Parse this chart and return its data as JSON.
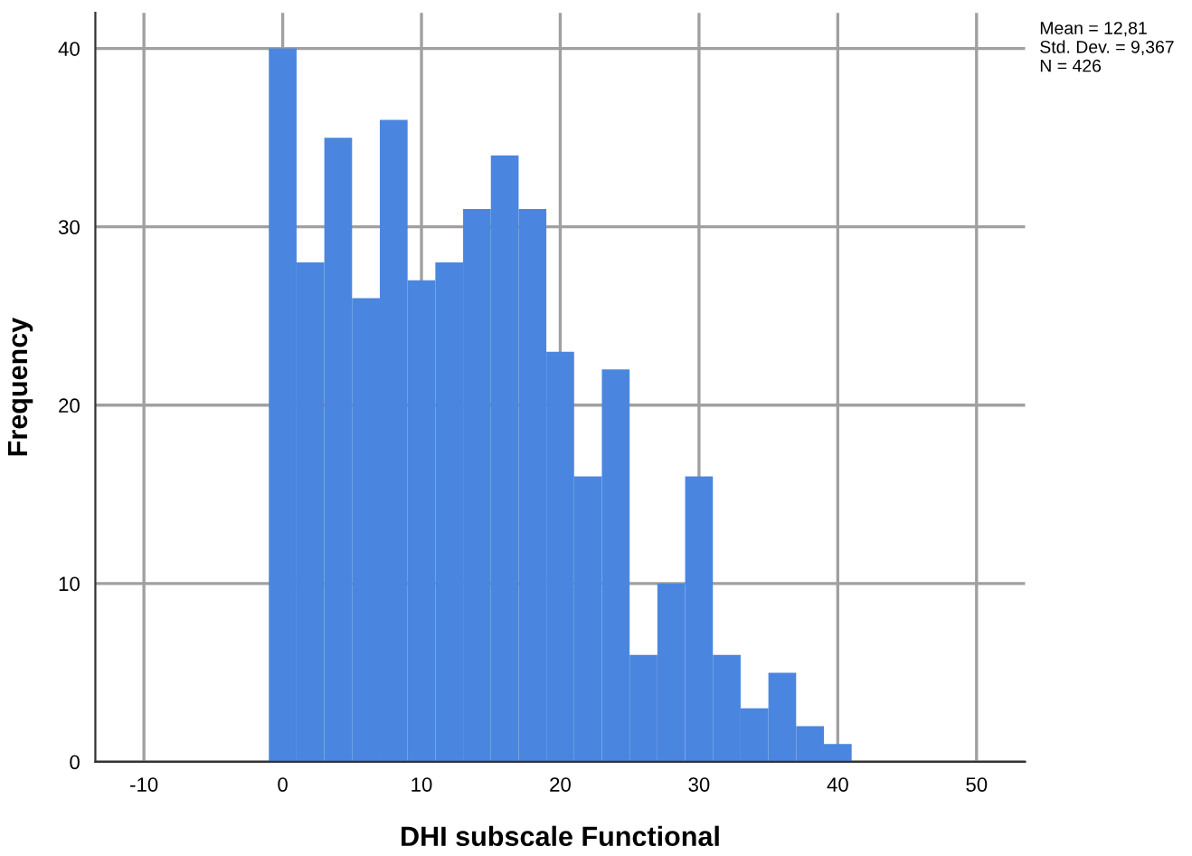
{
  "chart_data": {
    "type": "histogram",
    "xlabel": "DHI subscale Functional",
    "ylabel": "Frequency",
    "bins": [
      -1,
      1,
      3,
      5,
      7,
      9,
      11,
      13,
      15,
      17,
      19,
      21,
      23,
      25,
      27,
      29,
      31,
      33,
      35,
      37,
      39,
      41
    ],
    "values": [
      40,
      28,
      35,
      26,
      36,
      27,
      28,
      31,
      34,
      31,
      23,
      16,
      22,
      6,
      10,
      16,
      6,
      3,
      5,
      2,
      1
    ],
    "color": "#4a86e0",
    "xlim": [
      -13.5,
      53.5
    ],
    "xticks": [
      -10,
      0,
      10,
      20,
      30,
      40,
      50
    ],
    "ylim": [
      0,
      42
    ],
    "yticks": [
      0,
      10,
      20,
      30,
      40
    ],
    "grid": true,
    "annotations": [
      "Mean = 12,81",
      "Std. Dev. = 9,367",
      "N = 426"
    ]
  }
}
